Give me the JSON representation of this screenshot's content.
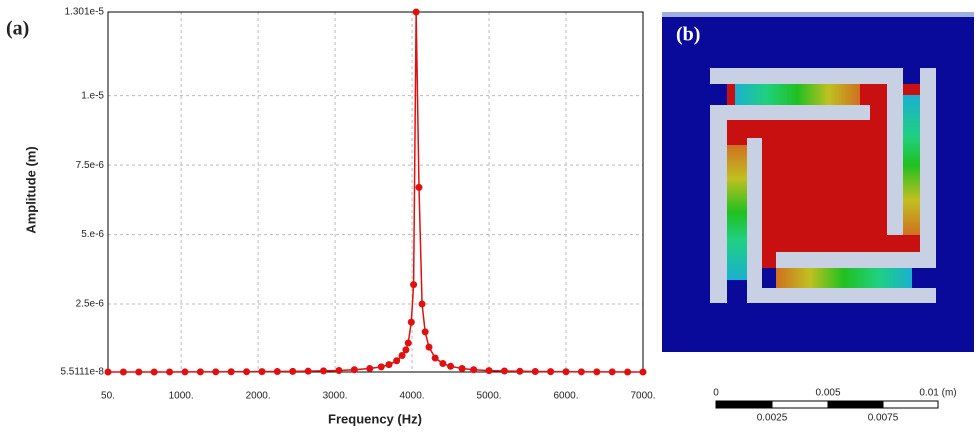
{
  "chart_data": {
    "type": "line",
    "label": "(a)",
    "xlabel": "Frequency (Hz)",
    "ylabel": "Amplitude (m)",
    "color": "#e01010",
    "grid": true,
    "x": [
      50,
      250,
      450,
      650,
      850,
      1050,
      1250,
      1450,
      1650,
      1850,
      2050,
      2250,
      2450,
      2650,
      2850,
      3050,
      3250,
      3450,
      3600,
      3700,
      3800,
      3870,
      3920,
      3950,
      3990,
      4020,
      4053,
      4090,
      4130,
      4170,
      4220,
      4300,
      4400,
      4500,
      4650,
      4800,
      5000,
      5200,
      5400,
      5600,
      5800,
      6000,
      6200,
      6400,
      6600,
      6800,
      7000
    ],
    "values": [
      5.52e-08,
      5.54e-08,
      5.57e-08,
      5.62e-08,
      5.7e-08,
      5.8e-08,
      5.93e-08,
      6.1e-08,
      6.3e-08,
      6.6e-08,
      6.9e-08,
      7.3e-08,
      7.8e-08,
      8.5e-08,
      9.5e-08,
      1.1e-07,
      1.35e-07,
      1.8e-07,
      2.4e-07,
      3.2e-07,
      4.6e-07,
      6.5e-07,
      8.5e-07,
      1.1e-06,
      1.85e-06,
      3.2e-06,
      1.301e-05,
      6.7e-06,
      2.5e-06,
      1.5e-06,
      9.5e-07,
      5.6e-07,
      3.6e-07,
      2.6e-07,
      1.8e-07,
      1.35e-07,
      1.05e-07,
      9e-08,
      8e-08,
      7.3e-08,
      6.8e-08,
      6.4e-08,
      6.1e-08,
      5.9e-08,
      5.75e-08,
      5.62e-08,
      5.5111e-08
    ],
    "xlim": [
      50,
      7000
    ],
    "xticks": [
      {
        "value": 50,
        "label": "50."
      },
      {
        "value": 1000,
        "label": "1000."
      },
      {
        "value": 2000,
        "label": "2000."
      },
      {
        "value": 3000,
        "label": "3000."
      },
      {
        "value": 4000,
        "label": "4000."
      },
      {
        "value": 5000,
        "label": "5000."
      },
      {
        "value": 6000,
        "label": "6000."
      },
      {
        "value": 7000,
        "label": "7000."
      }
    ],
    "ylim": [
      5.5111e-08,
      1.301e-05
    ],
    "yticks": [
      {
        "value": 5.5111e-08,
        "label": "5.5111e-8"
      },
      {
        "value": 2.5e-06,
        "label": "2.5e-6"
      },
      {
        "value": 5e-06,
        "label": "5.e-6"
      },
      {
        "value": 7.5e-06,
        "label": "7.5e-6"
      },
      {
        "value": 1e-05,
        "label": "1.e-5"
      },
      {
        "value": 1.301e-05,
        "label": "1.301e-5"
      }
    ]
  },
  "panel_b": {
    "label": "(b)",
    "scale_top": [
      "0",
      "0.005",
      "0.01 (m)"
    ],
    "scale_bottom": [
      "0.0025",
      "0.0075"
    ]
  }
}
